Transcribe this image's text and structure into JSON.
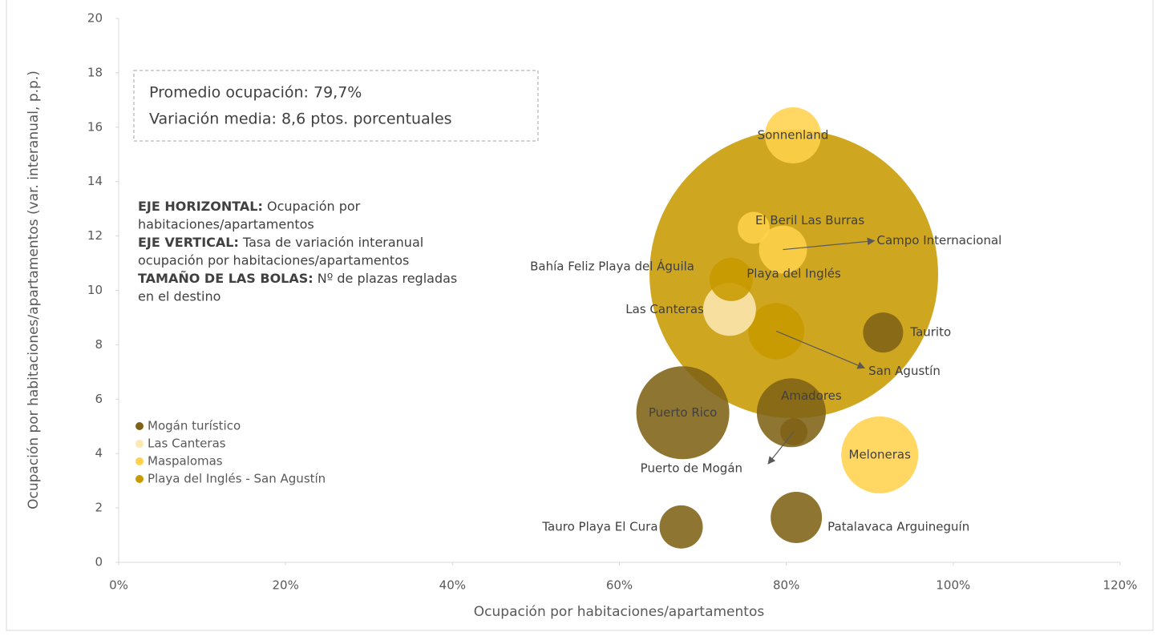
{
  "chart_data": {
    "type": "bubble",
    "x_label": "Ocupación por habitaciones/apartamentos",
    "y_label": "Ocupación por habitaciones/apartamentos (var. interanual, p.p.)",
    "xlim": [
      0,
      120
    ],
    "xticks": [
      {
        "value": 0,
        "label": "0%"
      },
      {
        "value": 20,
        "label": "20%"
      },
      {
        "value": 40,
        "label": "40%"
      },
      {
        "value": 60,
        "label": "60%"
      },
      {
        "value": 80,
        "label": "80%"
      },
      {
        "value": 100,
        "label": "100%"
      },
      {
        "value": 120,
        "label": "120%"
      }
    ],
    "ylim": [
      0,
      20
    ],
    "yticks": [
      0,
      2,
      4,
      6,
      8,
      10,
      12,
      14,
      16,
      18,
      20
    ],
    "grid": false,
    "legend": "left",
    "summary": [
      "Promedio ocupación: 79,7%",
      "Variación media: 8,6 ptos. porcentuales"
    ],
    "notes": [
      [
        {
          "bold": "EJE HORIZONTAL:",
          "text": " Ocupación por"
        },
        {
          "bold": "",
          "text": "habitaciones/apartamentos"
        }
      ],
      [
        {
          "bold": "EJE VERTICAL:",
          "text": " Tasa de variación interanual"
        },
        {
          "bold": "",
          "text": "ocupación por habitaciones/apartamentos"
        }
      ],
      [
        {
          "bold": "TAMAÑO DE LAS BOLAS:",
          "text": " Nº de plazas regladas"
        },
        {
          "bold": "",
          "text": "en el destino"
        }
      ]
    ],
    "series": [
      {
        "name": "Mogán turístico",
        "color": "#7f6216",
        "labels": [
          "Taurito",
          "Puerto Rico",
          "Amadores",
          "Puerto de Mogán",
          "Tauro Playa El Cura",
          "Patalavaca Arguineguín"
        ],
        "x": [
          91.6,
          67.6,
          80.6,
          80.9,
          67.4,
          81.2
        ],
        "values": [
          8.45,
          5.5,
          5.5,
          4.8,
          1.3,
          1.65
        ],
        "sizes": [
          625,
          3364,
          1849,
          289,
          729,
          1024
        ]
      },
      {
        "name": "Las Canteras",
        "color": "#fde8b2",
        "labels": [
          "Las Canteras"
        ],
        "x": [
          73.2
        ],
        "values": [
          9.3
        ],
        "sizes": [
          1089
        ]
      },
      {
        "name": "Maspalomas",
        "color": "#ffd24c",
        "labels": [
          "Sonnenland",
          "El Beril Las Burras",
          "Campo Internacional",
          "Meloneras"
        ],
        "x": [
          80.8,
          76.1,
          79.6,
          91.2
        ],
        "values": [
          15.7,
          12.3,
          11.5,
          3.95
        ],
        "sizes": [
          1225,
          400,
          900,
          2304
        ]
      },
      {
        "name": "Playa del Inglés - San Agustín",
        "color": "#c89a00",
        "labels": [
          "Playa del Inglés",
          "Bahía Feliz Playa del Águila",
          "San Agustín"
        ],
        "x": [
          80.9,
          73.4,
          78.8
        ],
        "values": [
          10.6,
          10.4,
          8.5
        ],
        "sizes": [
          32400,
          729,
          1225
        ]
      }
    ]
  }
}
